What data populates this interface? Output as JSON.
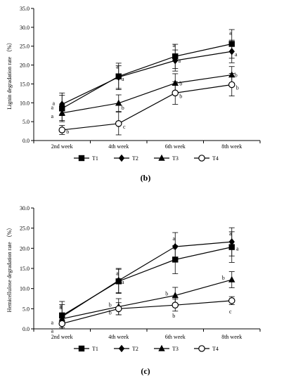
{
  "chart_data": [
    {
      "type": "line",
      "panel_label": "(b)",
      "ylabel": "Lignin degradation rate （%）",
      "categories": [
        "2nd week",
        "4th week",
        "6th week",
        "8th week"
      ],
      "ylim": [
        0,
        35
      ],
      "yticks": [
        "0.0",
        "5.0",
        "10.0",
        "15.0",
        "20.0",
        "25.0",
        "30.0",
        "35.0"
      ],
      "series": [
        {
          "name": "T1",
          "marker": "square",
          "values": [
            8.5,
            17.0,
            22.3,
            25.6
          ],
          "errors": [
            3.5,
            3.5,
            3.2,
            3.8
          ],
          "labels": [
            "a",
            "a",
            "a",
            "a"
          ]
        },
        {
          "name": "T2",
          "marker": "diamond",
          "values": [
            9.6,
            16.8,
            21.2,
            23.6
          ],
          "errors": [
            3.0,
            3.0,
            2.8,
            3.0
          ],
          "labels": [
            "a",
            "a",
            "a",
            "a"
          ]
        },
        {
          "name": "T3",
          "marker": "triangle",
          "values": [
            7.3,
            9.9,
            15.2,
            17.4
          ],
          "errors": [
            2.0,
            2.2,
            2.5,
            2.2
          ],
          "labels": [
            "a",
            "b",
            "b",
            "b"
          ]
        },
        {
          "name": "T4",
          "marker": "circle",
          "values": [
            2.8,
            4.5,
            12.6,
            14.8
          ],
          "errors": [
            1.2,
            3.0,
            3.0,
            3.0
          ],
          "labels": [
            "b",
            "c",
            "b",
            "b"
          ]
        }
      ]
    },
    {
      "type": "line",
      "panel_label": "(c)",
      "ylabel": "Hemicellulose degradation rate （%）",
      "categories": [
        "2nd week",
        "4th week",
        "6th week",
        "8th week"
      ],
      "ylim": [
        0,
        30
      ],
      "yticks": [
        "0.0",
        "5.0",
        "10.0",
        "15.0",
        "20.0",
        "25.0",
        "30.0"
      ],
      "series": [
        {
          "name": "T1",
          "marker": "square",
          "values": [
            3.3,
            11.8,
            17.2,
            20.3
          ],
          "errors": [
            3.5,
            3.0,
            3.5,
            3.8
          ],
          "labels": [
            "a",
            "a",
            "a",
            "a"
          ]
        },
        {
          "name": "T2",
          "marker": "diamond",
          "values": [
            3.0,
            12.0,
            20.4,
            21.6
          ],
          "errors": [
            3.0,
            3.0,
            3.5,
            3.5
          ],
          "labels": [
            "a",
            "a",
            "a",
            "a"
          ]
        },
        {
          "name": "T3",
          "marker": "triangle",
          "values": [
            2.5,
            5.5,
            8.3,
            12.2
          ],
          "errors": [
            1.5,
            2.0,
            2.0,
            2.0
          ],
          "labels": [
            "a",
            "b",
            "b",
            "b"
          ]
        },
        {
          "name": "T4",
          "marker": "circle",
          "values": [
            1.3,
            5.0,
            5.9,
            7.0
          ],
          "errors": [
            1.0,
            1.5,
            1.5,
            1.0
          ],
          "labels": [
            "a",
            "b",
            "b",
            "c"
          ]
        }
      ]
    }
  ]
}
